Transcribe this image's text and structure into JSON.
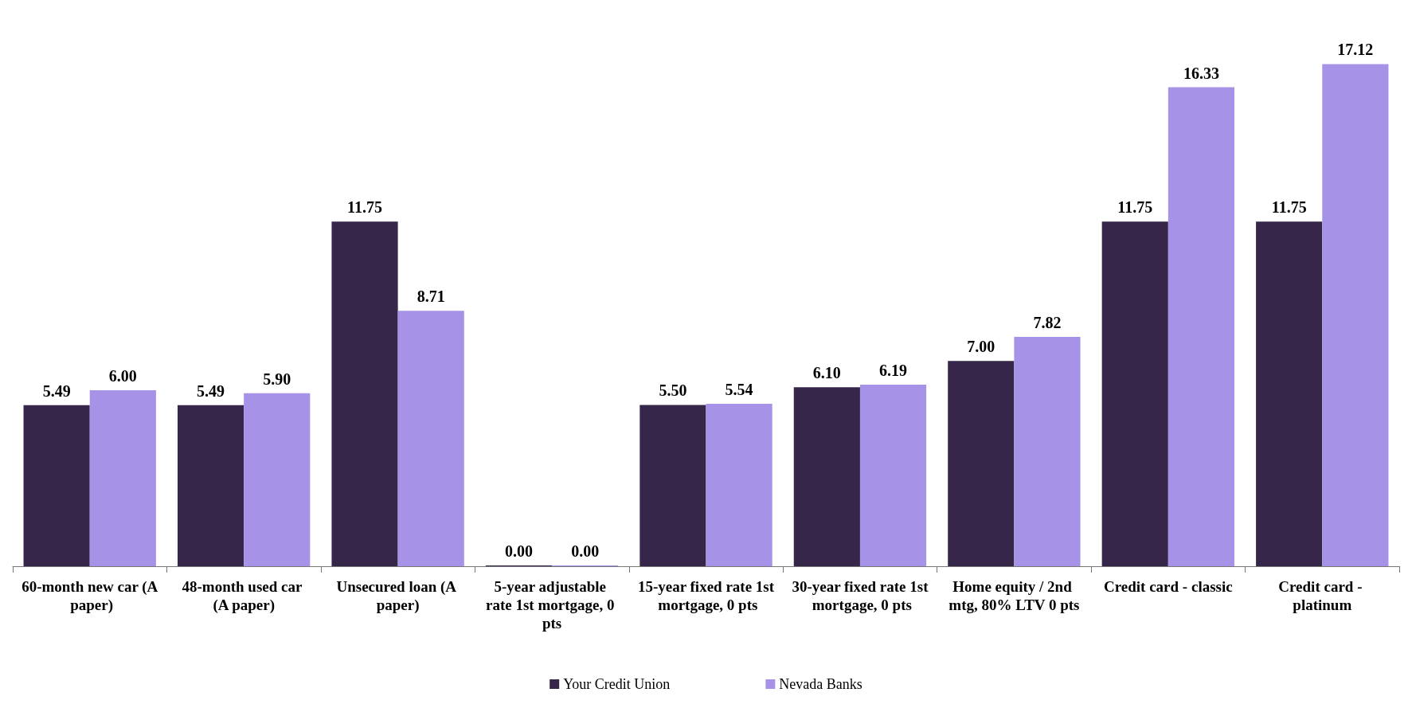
{
  "chart_data": {
    "type": "bar",
    "categories": [
      "60-month new car (A paper)",
      "48-month used car (A paper)",
      "Unsecured loan (A paper)",
      "5-year adjustable rate 1st mortgage, 0 pts",
      "15-year fixed rate 1st mortgage, 0 pts",
      "30-year fixed rate 1st mortgage, 0 pts",
      "Home equity / 2nd mtg, 80% LTV 0 pts",
      "Credit card - classic",
      "Credit card - platinum"
    ],
    "series": [
      {
        "name": "Your Credit Union",
        "color": "#35264a",
        "values": [
          5.49,
          5.49,
          11.75,
          0,
          5.5,
          6.1,
          7,
          11.75,
          11.75
        ],
        "value_labels": [
          "5.49",
          "5.49",
          "11.75",
          "0.00",
          "5.50",
          "6.10",
          "7.00",
          "11.75",
          "11.75"
        ]
      },
      {
        "name": "Nevada Banks",
        "color": "#a693e8",
        "values": [
          6,
          5.9,
          8.71,
          0,
          5.54,
          6.19,
          7.82,
          16.33,
          17.12
        ],
        "value_labels": [
          "6.00",
          "5.90",
          "8.71",
          "0.00",
          "5.54",
          "6.19",
          "7.82",
          "16.33",
          "17.12"
        ]
      }
    ],
    "legend": "bottom"
  }
}
